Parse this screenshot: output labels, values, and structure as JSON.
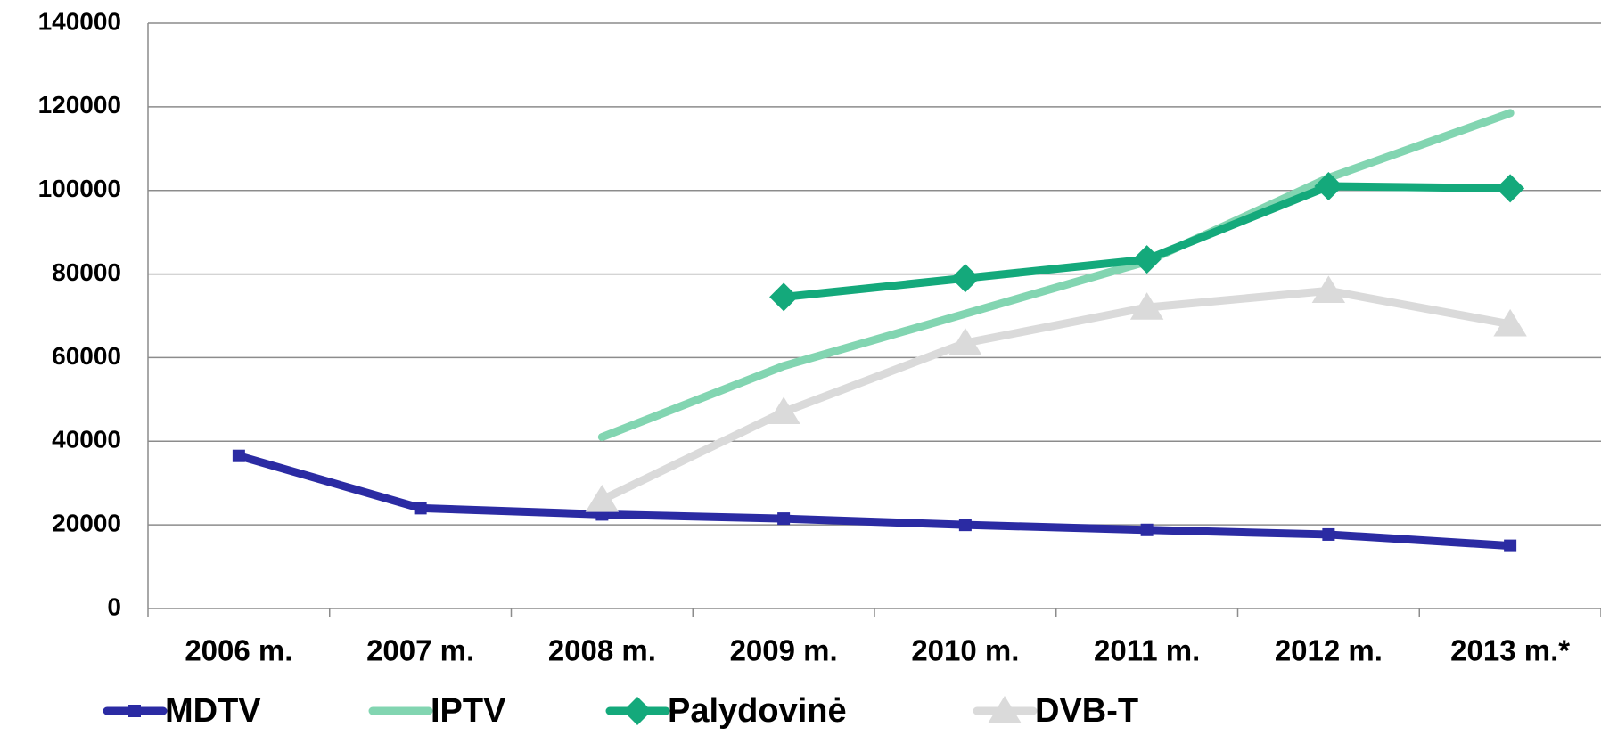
{
  "chart_data": {
    "type": "line",
    "categories": [
      "2006 m.",
      "2007 m.",
      "2008 m.",
      "2009 m.",
      "2010 m.",
      "2011 m.",
      "2012 m.",
      "2013 m.*"
    ],
    "series": [
      {
        "name": "MDTV",
        "color": "#2b2ba3",
        "marker": "square",
        "values": [
          36500,
          24000,
          22500,
          21500,
          20000,
          18800,
          17700,
          15000
        ]
      },
      {
        "name": "IPTV",
        "color": "#82d5b1",
        "marker": "none",
        "values": [
          null,
          null,
          41000,
          58000,
          70500,
          83000,
          103000,
          118500
        ]
      },
      {
        "name": "Palydovinė",
        "color": "#14a97b",
        "marker": "diamond",
        "values": [
          null,
          null,
          null,
          74500,
          79000,
          83500,
          101000,
          100500
        ]
      },
      {
        "name": "DVB-T",
        "color": "#dadada",
        "marker": "triangle",
        "values": [
          null,
          null,
          26000,
          47000,
          63500,
          72000,
          76000,
          68000
        ]
      }
    ],
    "ylim": [
      0,
      140000
    ],
    "yticks": [
      0,
      20000,
      40000,
      60000,
      80000,
      100000,
      120000,
      140000
    ],
    "grid": true,
    "legend": "bottom"
  }
}
